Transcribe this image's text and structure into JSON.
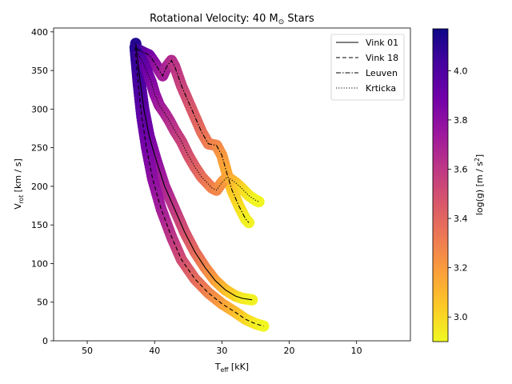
{
  "chart_data": {
    "type": "scatter",
    "title": "Rotational Velocity: 40 M",
    "title_symbol": "⊙",
    "title_suffix": " Stars",
    "xlabel": "T",
    "xlabel_sub": "eff",
    "xlabel_unit": " [kK]",
    "ylabel": "V",
    "ylabel_sub": "rot",
    "ylabel_unit": " [km / s]",
    "xlim": [
      55,
      2
    ],
    "ylim": [
      0,
      405
    ],
    "x_ticks": [
      50,
      40,
      30,
      20,
      10
    ],
    "y_ticks": [
      0,
      50,
      100,
      150,
      200,
      250,
      300,
      350,
      400
    ],
    "grid": false,
    "legend_position": "top-right",
    "colorbar": {
      "label": "log(g) [m / s",
      "label_sup": "2",
      "label_end": "]",
      "colormap": "plasma",
      "range": [
        2.9,
        4.17
      ],
      "ticks": [
        "3.0",
        "3.2",
        "3.4",
        "3.6",
        "3.8",
        "4.0"
      ],
      "stops": [
        "#0d0887",
        "#46039f",
        "#7201a8",
        "#9c179e",
        "#bd3786",
        "#d8576b",
        "#ed7953",
        "#fb9f3a",
        "#fdca26",
        "#f0f921"
      ]
    },
    "series": [
      {
        "name": "Vink 01",
        "dash": "solid",
        "points": [
          [
            42.8,
            385,
            4.12
          ],
          [
            42.6,
            370,
            4.08
          ],
          [
            42.2,
            340,
            4.02
          ],
          [
            41.6,
            300,
            3.95
          ],
          [
            40.8,
            265,
            3.88
          ],
          [
            39.8,
            235,
            3.8
          ],
          [
            38.5,
            200,
            3.7
          ],
          [
            37.0,
            170,
            3.6
          ],
          [
            35.5,
            140,
            3.5
          ],
          [
            34.0,
            115,
            3.4
          ],
          [
            32.5,
            95,
            3.3
          ],
          [
            31.0,
            78,
            3.2
          ],
          [
            29.5,
            66,
            3.1
          ],
          [
            28.0,
            58,
            3.02
          ],
          [
            27.0,
            55,
            2.96
          ],
          [
            25.5,
            53,
            2.92
          ]
        ]
      },
      {
        "name": "Vink 18",
        "dash": "dashed",
        "points": [
          [
            42.9,
            380,
            4.12
          ],
          [
            42.7,
            360,
            4.08
          ],
          [
            42.4,
            330,
            4.02
          ],
          [
            41.9,
            290,
            3.95
          ],
          [
            41.2,
            250,
            3.88
          ],
          [
            40.3,
            210,
            3.8
          ],
          [
            39.0,
            170,
            3.72
          ],
          [
            37.5,
            135,
            3.62
          ],
          [
            36.0,
            105,
            3.52
          ],
          [
            34.0,
            80,
            3.4
          ],
          [
            32.0,
            62,
            3.3
          ],
          [
            30.0,
            48,
            3.2
          ],
          [
            28.0,
            37,
            3.1
          ],
          [
            26.5,
            28,
            3.02
          ],
          [
            25.0,
            22,
            2.95
          ],
          [
            23.8,
            19,
            2.91
          ]
        ]
      },
      {
        "name": "Leuven",
        "dash": "dashdot",
        "points": [
          [
            42.7,
            378,
            4.1
          ],
          [
            41.8,
            374,
            3.98
          ],
          [
            40.8,
            370,
            3.9
          ],
          [
            40.0,
            360,
            3.82
          ],
          [
            39.3,
            350,
            3.76
          ],
          [
            38.8,
            343,
            3.72
          ],
          [
            38.2,
            355,
            3.7
          ],
          [
            37.5,
            363,
            3.66
          ],
          [
            37.0,
            355,
            3.62
          ],
          [
            36.0,
            330,
            3.56
          ],
          [
            35.0,
            310,
            3.5
          ],
          [
            34.0,
            290,
            3.44
          ],
          [
            33.0,
            270,
            3.38
          ],
          [
            32.0,
            255,
            3.32
          ],
          [
            30.8,
            253,
            3.28
          ],
          [
            30.0,
            240,
            3.22
          ],
          [
            29.2,
            215,
            3.14
          ],
          [
            28.5,
            195,
            3.06
          ],
          [
            27.5,
            175,
            3.0
          ],
          [
            26.5,
            158,
            2.94
          ],
          [
            26.0,
            153,
            2.92
          ]
        ]
      },
      {
        "name": "Krticka",
        "dash": "dotted",
        "points": [
          [
            42.7,
            374,
            4.1
          ],
          [
            42.0,
            365,
            4.0
          ],
          [
            41.2,
            350,
            3.92
          ],
          [
            40.5,
            335,
            3.85
          ],
          [
            40.0,
            320,
            3.8
          ],
          [
            39.3,
            305,
            3.74
          ],
          [
            38.5,
            295,
            3.7
          ],
          [
            37.8,
            285,
            3.66
          ],
          [
            37.0,
            272,
            3.62
          ],
          [
            36.0,
            258,
            3.56
          ],
          [
            35.0,
            240,
            3.5
          ],
          [
            34.0,
            225,
            3.44
          ],
          [
            33.0,
            212,
            3.38
          ],
          [
            31.5,
            198,
            3.3
          ],
          [
            30.8,
            195,
            3.28
          ],
          [
            30.0,
            205,
            3.24
          ],
          [
            29.2,
            212,
            3.18
          ],
          [
            28.0,
            205,
            3.1
          ],
          [
            27.0,
            197,
            3.02
          ],
          [
            26.0,
            188,
            2.96
          ],
          [
            25.0,
            182,
            2.92
          ],
          [
            24.5,
            180,
            2.91
          ]
        ]
      }
    ]
  }
}
